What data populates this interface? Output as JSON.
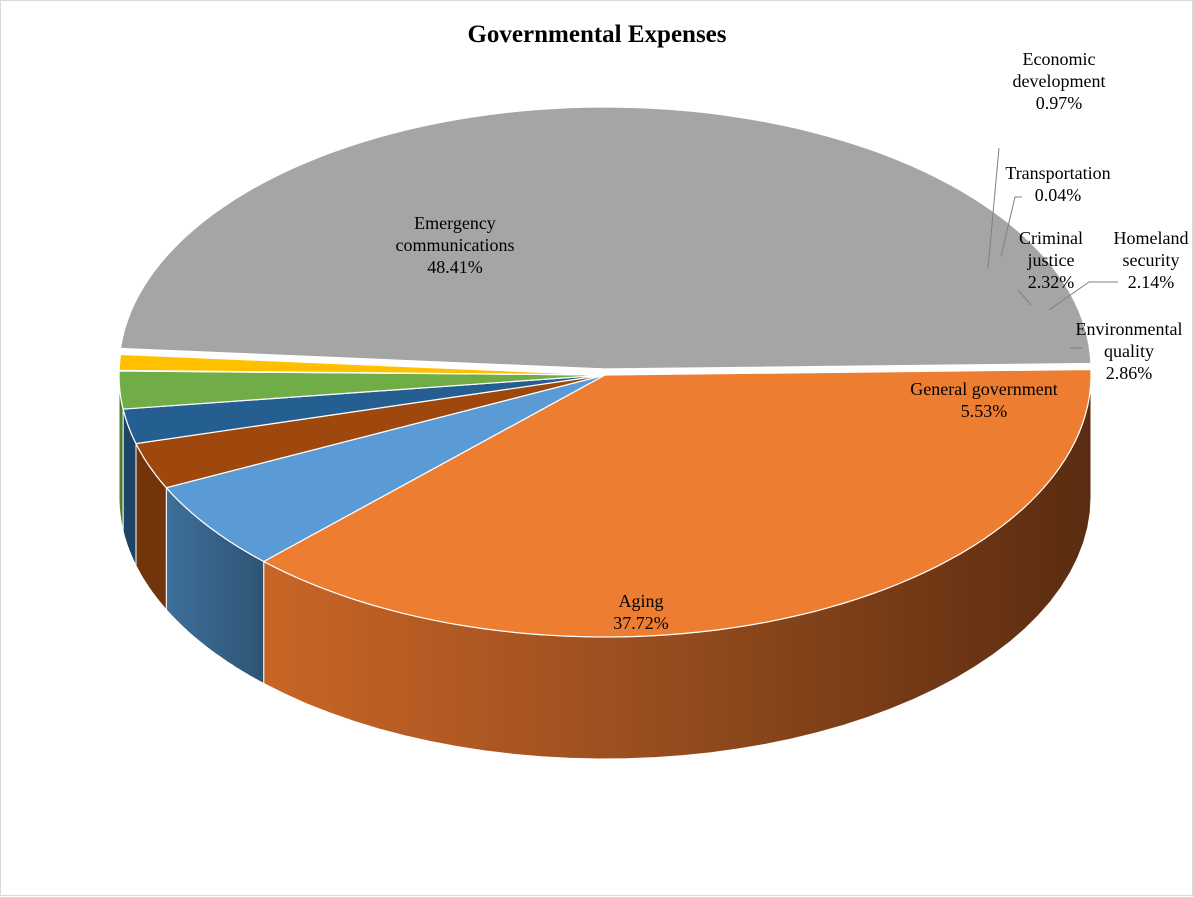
{
  "chart_data": {
    "type": "pie",
    "title": "Governmental Expenses",
    "slices": [
      {
        "label": "Aging",
        "value": 37.72,
        "display": "37.72%",
        "color": "#ED7D31"
      },
      {
        "label": "General government",
        "value": 5.53,
        "display": "5.53%",
        "color": "#5B9BD5"
      },
      {
        "label": "Environmental quality",
        "value": 2.86,
        "display": "2.86%",
        "color": "#9E480E"
      },
      {
        "label": "Homeland security",
        "value": 2.14,
        "display": "2.14%",
        "color": "#255E91"
      },
      {
        "label": "Criminal justice",
        "value": 2.32,
        "display": "2.32%",
        "color": "#70AD47"
      },
      {
        "label": "Transportation",
        "value": 0.04,
        "display": "0.04%",
        "color": "#4472C4"
      },
      {
        "label": "Economic development",
        "value": 0.97,
        "display": "0.97%",
        "color": "#FFC000"
      },
      {
        "label": "Emergency communications",
        "value": 48.41,
        "display": "48.41%",
        "color": "#A5A5A5"
      }
    ],
    "label_lines": {
      "Aging": [
        "Aging"
      ],
      "General government": [
        "General government"
      ],
      "Environmental quality": [
        "Environmental",
        "quality"
      ],
      "Homeland security": [
        "Homeland",
        "security"
      ],
      "Criminal justice": [
        "Criminal",
        "justice"
      ],
      "Transportation": [
        "Transportation"
      ],
      "Economic development": [
        "Economic",
        "development"
      ],
      "Emergency communications": [
        "Emergency",
        "communications"
      ]
    },
    "legend": "none",
    "style": "3d-exploded"
  }
}
